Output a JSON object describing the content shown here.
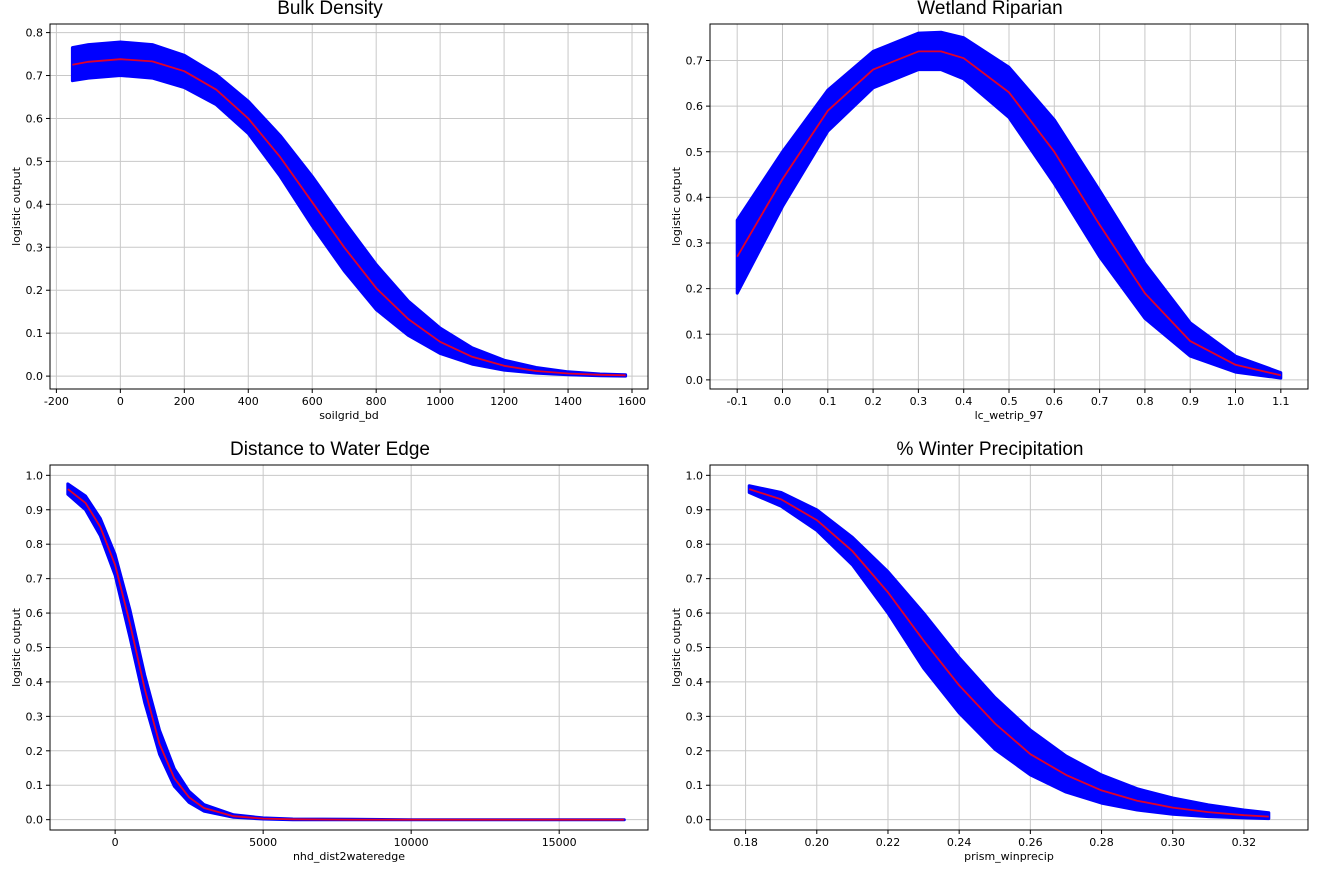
{
  "chart_data": [
    {
      "type": "line",
      "title": "Bulk Density",
      "xlabel": "soilgrid_bd",
      "ylabel": "logistic output",
      "xlim": [
        -220,
        1650
      ],
      "ylim": [
        -0.03,
        0.82
      ],
      "x_ticks": [
        -200,
        0,
        200,
        400,
        600,
        800,
        1000,
        1200,
        1400,
        1600
      ],
      "y_ticks": [
        0.0,
        0.1,
        0.2,
        0.3,
        0.4,
        0.5,
        0.6,
        0.7,
        0.8
      ],
      "x_tick_labels": [
        "-200",
        "0",
        "200",
        "400",
        "600",
        "800",
        "1000",
        "1200",
        "1400",
        "1600"
      ],
      "y_tick_labels": [
        "0.0",
        "0.1",
        "0.2",
        "0.3",
        "0.4",
        "0.5",
        "0.6",
        "0.7",
        "0.8"
      ],
      "grid": true,
      "colors": {
        "band": "#0000ff",
        "line": "#e0002a"
      },
      "series": [
        {
          "role": "mean",
          "x": [
            -150,
            -100,
            0,
            100,
            200,
            300,
            400,
            500,
            600,
            700,
            800,
            900,
            1000,
            1100,
            1200,
            1300,
            1400,
            1500,
            1580
          ],
          "values": [
            0.725,
            0.732,
            0.738,
            0.733,
            0.71,
            0.667,
            0.6,
            0.51,
            0.405,
            0.3,
            0.205,
            0.133,
            0.08,
            0.045,
            0.024,
            0.012,
            0.006,
            0.003,
            0.002
          ]
        },
        {
          "role": "upper",
          "x": [
            -150,
            -100,
            0,
            100,
            200,
            300,
            400,
            500,
            600,
            700,
            800,
            900,
            1000,
            1100,
            1200,
            1300,
            1400,
            1500,
            1580
          ],
          "values": [
            0.765,
            0.772,
            0.778,
            0.772,
            0.747,
            0.702,
            0.64,
            0.56,
            0.465,
            0.36,
            0.26,
            0.175,
            0.112,
            0.066,
            0.037,
            0.02,
            0.01,
            0.005,
            0.003
          ]
        },
        {
          "role": "lower",
          "x": [
            -150,
            -100,
            0,
            100,
            200,
            300,
            400,
            500,
            600,
            700,
            800,
            900,
            1000,
            1100,
            1200,
            1300,
            1400,
            1500,
            1580
          ],
          "values": [
            0.688,
            0.694,
            0.7,
            0.694,
            0.672,
            0.632,
            0.565,
            0.465,
            0.35,
            0.245,
            0.155,
            0.095,
            0.053,
            0.028,
            0.014,
            0.007,
            0.003,
            0.001,
            0.0
          ]
        }
      ]
    },
    {
      "type": "line",
      "title": "Wetland Riparian",
      "xlabel": "lc_wetrip_97",
      "ylabel": "logistic output",
      "xlim": [
        -0.16,
        1.16
      ],
      "ylim": [
        -0.02,
        0.78
      ],
      "x_ticks": [
        -0.1,
        0.0,
        0.1,
        0.2,
        0.3,
        0.4,
        0.5,
        0.6,
        0.7,
        0.8,
        0.9,
        1.0,
        1.1
      ],
      "y_ticks": [
        0.0,
        0.1,
        0.2,
        0.3,
        0.4,
        0.5,
        0.6,
        0.7
      ],
      "x_tick_labels": [
        "-0.1",
        "0.0",
        "0.1",
        "0.2",
        "0.3",
        "0.4",
        "0.5",
        "0.6",
        "0.7",
        "0.8",
        "0.9",
        "1.0",
        "1.1"
      ],
      "y_tick_labels": [
        "0.0",
        "0.1",
        "0.2",
        "0.3",
        "0.4",
        "0.5",
        "0.6",
        "0.7"
      ],
      "grid": true,
      "colors": {
        "band": "#0000ff",
        "line": "#e0002a"
      },
      "series": [
        {
          "role": "mean",
          "x": [
            -0.1,
            0.0,
            0.1,
            0.2,
            0.3,
            0.35,
            0.4,
            0.5,
            0.6,
            0.7,
            0.8,
            0.9,
            1.0,
            1.1
          ],
          "values": [
            0.27,
            0.44,
            0.59,
            0.68,
            0.72,
            0.72,
            0.705,
            0.63,
            0.5,
            0.34,
            0.19,
            0.085,
            0.033,
            0.01
          ]
        },
        {
          "role": "upper",
          "x": [
            -0.1,
            0.0,
            0.1,
            0.2,
            0.3,
            0.35,
            0.4,
            0.5,
            0.6,
            0.7,
            0.8,
            0.9,
            1.0,
            1.1
          ],
          "values": [
            0.35,
            0.5,
            0.635,
            0.72,
            0.76,
            0.762,
            0.75,
            0.685,
            0.57,
            0.415,
            0.255,
            0.125,
            0.052,
            0.016
          ]
        },
        {
          "role": "lower",
          "x": [
            -0.1,
            0.0,
            0.1,
            0.2,
            0.3,
            0.35,
            0.4,
            0.5,
            0.6,
            0.7,
            0.8,
            0.9,
            1.0,
            1.1
          ],
          "values": [
            0.19,
            0.38,
            0.545,
            0.64,
            0.68,
            0.68,
            0.66,
            0.575,
            0.43,
            0.27,
            0.135,
            0.052,
            0.017,
            0.004
          ]
        }
      ]
    },
    {
      "type": "line",
      "title": "Distance to Water Edge",
      "xlabel": "nhd_dist2wateredge",
      "ylabel": "logistic output",
      "xlim": [
        -2200,
        18000
      ],
      "ylim": [
        -0.03,
        1.03
      ],
      "x_ticks": [
        0,
        5000,
        10000,
        15000
      ],
      "y_ticks": [
        0.0,
        0.1,
        0.2,
        0.3,
        0.4,
        0.5,
        0.6,
        0.7,
        0.8,
        0.9,
        1.0
      ],
      "x_tick_labels": [
        "0",
        "5000",
        "10000",
        "15000"
      ],
      "y_tick_labels": [
        "0.0",
        "0.1",
        "0.2",
        "0.3",
        "0.4",
        "0.5",
        "0.6",
        "0.7",
        "0.8",
        "0.9",
        "1.0"
      ],
      "grid": true,
      "colors": {
        "band": "#0000ff",
        "line": "#e0002a"
      },
      "series": [
        {
          "role": "mean",
          "x": [
            -1600,
            -1000,
            -500,
            0,
            500,
            1000,
            1500,
            2000,
            2500,
            3000,
            4000,
            5000,
            6000,
            8000,
            10000,
            12000,
            15000,
            17200
          ],
          "values": [
            0.96,
            0.92,
            0.85,
            0.74,
            0.57,
            0.38,
            0.22,
            0.12,
            0.065,
            0.034,
            0.01,
            0.003,
            0.001,
            0.0,
            0.0,
            0.0,
            0.0,
            0.0
          ]
        },
        {
          "role": "upper",
          "x": [
            -1600,
            -1000,
            -500,
            0,
            500,
            1000,
            1500,
            2000,
            2500,
            3000,
            4000,
            5000,
            6000,
            8000,
            10000,
            12000,
            15000,
            17200
          ],
          "values": [
            0.975,
            0.94,
            0.875,
            0.77,
            0.61,
            0.42,
            0.26,
            0.148,
            0.082,
            0.044,
            0.014,
            0.005,
            0.002,
            0.001,
            0.0,
            0.0,
            0.0,
            0.0
          ]
        },
        {
          "role": "lower",
          "x": [
            -1600,
            -1000,
            -500,
            0,
            500,
            1000,
            1500,
            2000,
            2500,
            3000,
            4000,
            5000,
            6000,
            8000,
            10000,
            12000,
            15000,
            17200
          ],
          "values": [
            0.945,
            0.9,
            0.825,
            0.71,
            0.53,
            0.34,
            0.19,
            0.097,
            0.05,
            0.025,
            0.007,
            0.002,
            0.0,
            0.0,
            0.0,
            0.0,
            0.0,
            0.0
          ]
        }
      ]
    },
    {
      "type": "line",
      "title": "% Winter Precipitation",
      "xlabel": "prism_winprecip",
      "ylabel": "logistic output",
      "xlim": [
        0.17,
        0.338
      ],
      "ylim": [
        -0.03,
        1.03
      ],
      "x_ticks": [
        0.18,
        0.2,
        0.22,
        0.24,
        0.26,
        0.28,
        0.3,
        0.32
      ],
      "y_ticks": [
        0.0,
        0.1,
        0.2,
        0.3,
        0.4,
        0.5,
        0.6,
        0.7,
        0.8,
        0.9,
        1.0
      ],
      "x_tick_labels": [
        "0.18",
        "0.20",
        "0.22",
        "0.24",
        "0.26",
        "0.28",
        "0.30",
        "0.32"
      ],
      "y_tick_labels": [
        "0.0",
        "0.1",
        "0.2",
        "0.3",
        "0.4",
        "0.5",
        "0.6",
        "0.7",
        "0.8",
        "0.9",
        "1.0"
      ],
      "grid": true,
      "colors": {
        "band": "#0000ff",
        "line": "#e0002a"
      },
      "series": [
        {
          "role": "mean",
          "x": [
            0.181,
            0.19,
            0.2,
            0.21,
            0.22,
            0.23,
            0.24,
            0.25,
            0.26,
            0.27,
            0.28,
            0.29,
            0.3,
            0.31,
            0.32,
            0.327
          ],
          "values": [
            0.96,
            0.93,
            0.87,
            0.78,
            0.66,
            0.52,
            0.39,
            0.28,
            0.19,
            0.13,
            0.085,
            0.055,
            0.035,
            0.022,
            0.013,
            0.009
          ]
        },
        {
          "role": "upper",
          "x": [
            0.181,
            0.19,
            0.2,
            0.21,
            0.22,
            0.23,
            0.24,
            0.25,
            0.26,
            0.27,
            0.28,
            0.29,
            0.3,
            0.31,
            0.32,
            0.327
          ],
          "values": [
            0.97,
            0.95,
            0.9,
            0.82,
            0.72,
            0.6,
            0.47,
            0.355,
            0.26,
            0.185,
            0.13,
            0.09,
            0.063,
            0.043,
            0.028,
            0.02
          ]
        },
        {
          "role": "lower",
          "x": [
            0.181,
            0.19,
            0.2,
            0.21,
            0.22,
            0.23,
            0.24,
            0.25,
            0.26,
            0.27,
            0.28,
            0.29,
            0.3,
            0.31,
            0.32,
            0.327
          ],
          "values": [
            0.95,
            0.91,
            0.84,
            0.74,
            0.6,
            0.44,
            0.31,
            0.205,
            0.13,
            0.08,
            0.048,
            0.028,
            0.016,
            0.009,
            0.005,
            0.003
          ]
        }
      ]
    }
  ]
}
